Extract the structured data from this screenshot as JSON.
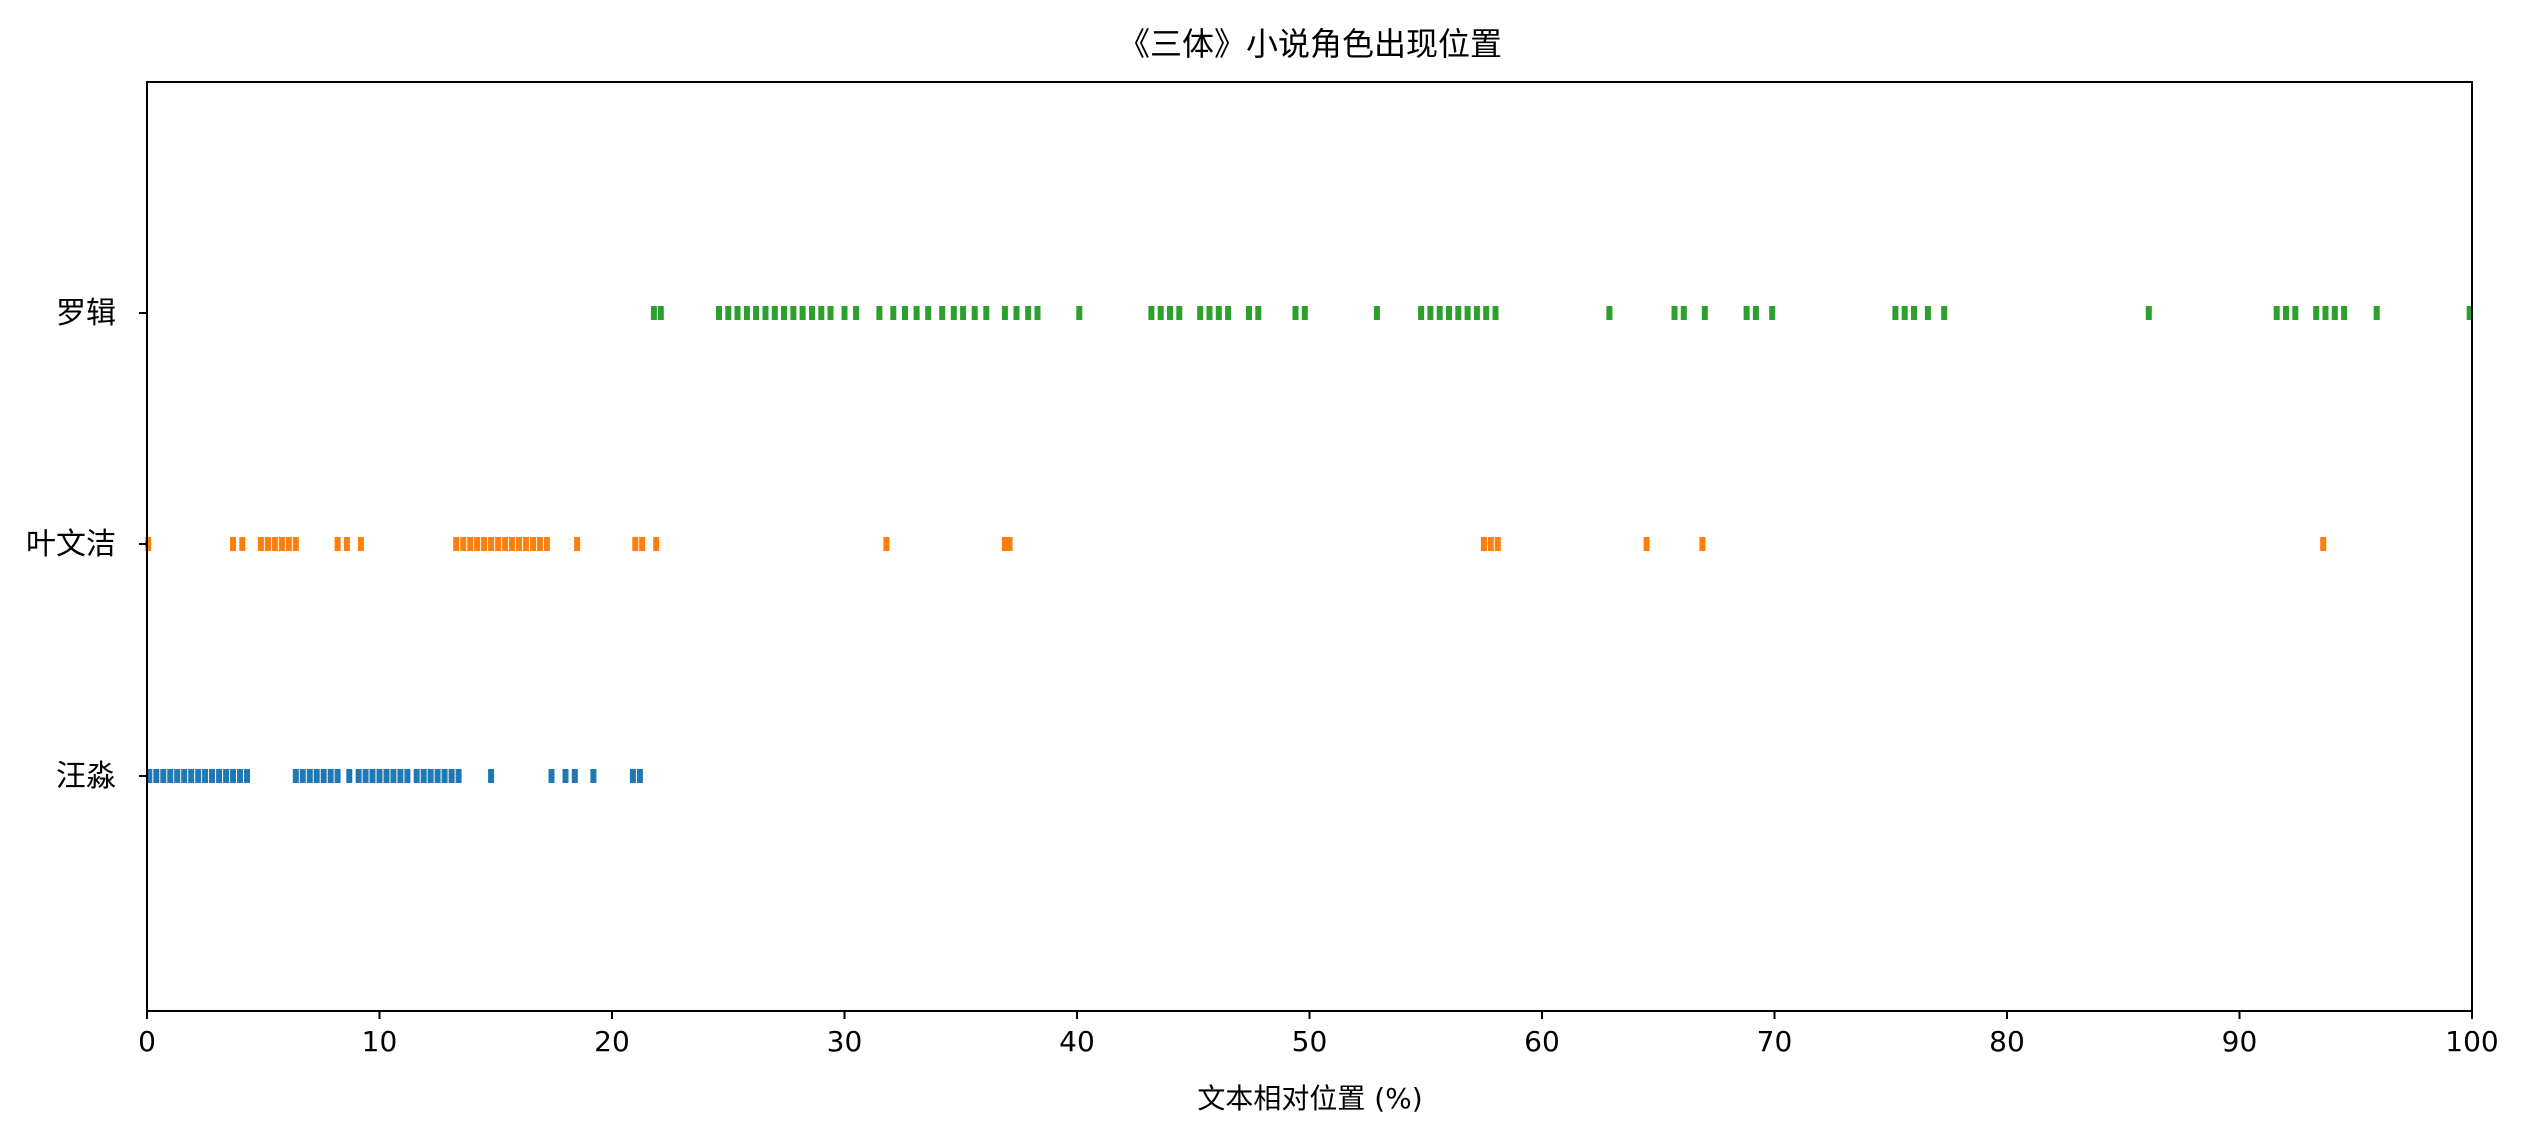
{
  "chart_data": {
    "type": "scatter",
    "title": "《三体》小说角色出现位置",
    "xlabel": "文本相对位置 (%)",
    "ylabel": "",
    "xlim": [
      0,
      100
    ],
    "xticks": [
      "0",
      "10",
      "20",
      "30",
      "40",
      "50",
      "60",
      "70",
      "80",
      "90",
      "100"
    ],
    "grid": false,
    "legend": "none",
    "categories": [
      "汪淼",
      "叶文洁",
      "罗辑"
    ],
    "series": [
      {
        "name": "汪淼",
        "color": "#1f77b4",
        "x": [
          0.1,
          0.4,
          0.7,
          1.0,
          1.3,
          1.6,
          1.9,
          2.2,
          2.5,
          2.8,
          3.1,
          3.4,
          3.7,
          4.0,
          4.3,
          6.4,
          6.7,
          7.0,
          7.3,
          7.6,
          7.9,
          8.2,
          8.7,
          9.1,
          9.4,
          9.7,
          10.0,
          10.3,
          10.6,
          10.9,
          11.2,
          11.6,
          11.9,
          12.2,
          12.5,
          12.8,
          13.1,
          13.4,
          14.8,
          17.4,
          18.0,
          18.4,
          19.2,
          20.9,
          21.2
        ]
      },
      {
        "name": "叶文洁",
        "color": "#ff7f0e",
        "x": [
          0.05,
          3.7,
          4.1,
          4.9,
          5.2,
          5.5,
          5.8,
          6.1,
          6.4,
          8.2,
          8.6,
          9.2,
          13.3,
          13.6,
          13.9,
          14.2,
          14.5,
          14.8,
          15.1,
          15.4,
          15.7,
          16.0,
          16.3,
          16.6,
          16.9,
          17.2,
          18.5,
          21.0,
          21.3,
          21.9,
          31.8,
          36.9,
          37.1,
          57.5,
          57.8,
          58.1,
          64.5,
          66.9,
          93.6
        ]
      },
      {
        "name": "罗辑",
        "color": "#2ca02c",
        "x": [
          21.8,
          22.1,
          24.6,
          25.0,
          25.4,
          25.8,
          26.2,
          26.6,
          27.0,
          27.4,
          27.8,
          28.2,
          28.6,
          29.0,
          29.4,
          30.0,
          30.5,
          31.5,
          32.1,
          32.6,
          33.1,
          33.6,
          34.2,
          34.7,
          35.1,
          35.6,
          36.1,
          36.9,
          37.4,
          37.9,
          38.3,
          40.1,
          43.2,
          43.6,
          44.0,
          44.4,
          45.3,
          45.7,
          46.1,
          46.5,
          47.4,
          47.8,
          49.4,
          49.8,
          52.9,
          54.8,
          55.2,
          55.6,
          56.0,
          56.4,
          56.8,
          57.2,
          57.6,
          58.0,
          62.9,
          65.7,
          66.1,
          67.0,
          68.8,
          69.2,
          69.9,
          75.2,
          75.6,
          76.0,
          76.6,
          77.3,
          86.1,
          91.6,
          92.0,
          92.4,
          93.3,
          93.7,
          94.1,
          94.5,
          95.9,
          99.9
        ]
      }
    ]
  }
}
